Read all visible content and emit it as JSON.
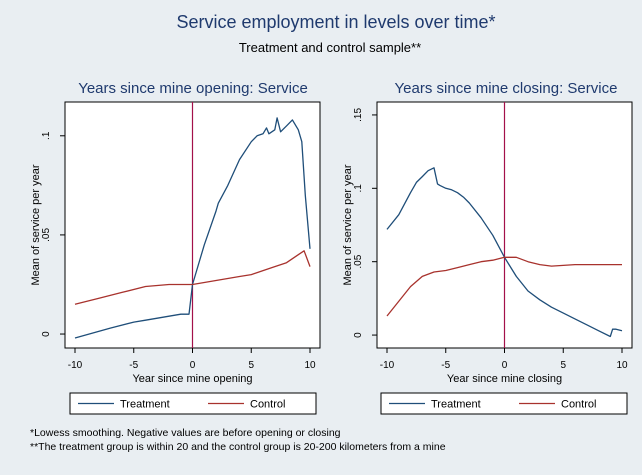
{
  "figure": {
    "title": "Service employment in levels over time*",
    "subtitle": "Treatment and control sample**",
    "footnote1": "*Lowess smoothing. Negative values are before opening or closing",
    "footnote2": "**The treatment group is within 20 and the control group is 20-200 kilometers from a mine"
  },
  "colors": {
    "background": "#e9eef2",
    "plot_bg": "#ffffff",
    "treatment": "#1f4e79",
    "control": "#a8322d",
    "event_line": "#a3114a",
    "title": "#1f3a6e"
  },
  "chart_data": [
    {
      "type": "line",
      "title": "Years since mine opening: Service",
      "xlabel": "Year since mine opening",
      "ylabel": "Mean of service per year",
      "xlim": [
        -10,
        10
      ],
      "ylim": [
        -0.002,
        0.112
      ],
      "xticks": [
        -10,
        -5,
        0,
        5,
        10
      ],
      "xtick_labels": [
        "-10",
        "-5",
        "0",
        "5",
        "10"
      ],
      "yticks": [
        0,
        0.05,
        0.1
      ],
      "ytick_labels": [
        "0",
        ".05",
        ".1"
      ],
      "event_x": 0,
      "legend": [
        "Treatment",
        "Control"
      ],
      "series": [
        {
          "name": "Treatment",
          "x": [
            -10,
            -7,
            -5,
            -4,
            -3,
            -2,
            -1,
            -0.3,
            0,
            1,
            2,
            2.2,
            3,
            4,
            5,
            5.5,
            6,
            6.3,
            6.5,
            7,
            7.2,
            7.5,
            8,
            8.5,
            9,
            9.3,
            9.6,
            10
          ],
          "values": [
            -0.002,
            0.003,
            0.006,
            0.007,
            0.008,
            0.009,
            0.01,
            0.01,
            0.025,
            0.045,
            0.062,
            0.066,
            0.075,
            0.088,
            0.097,
            0.1,
            0.101,
            0.104,
            0.101,
            0.103,
            0.109,
            0.102,
            0.105,
            0.108,
            0.103,
            0.097,
            0.07,
            0.043
          ]
        },
        {
          "name": "Control",
          "x": [
            -10,
            -8,
            -6,
            -4,
            -2,
            0,
            2,
            4,
            5,
            6,
            7,
            8,
            9,
            9.5,
            10
          ],
          "values": [
            0.015,
            0.018,
            0.021,
            0.024,
            0.025,
            0.025,
            0.027,
            0.029,
            0.03,
            0.032,
            0.034,
            0.036,
            0.04,
            0.042,
            0.034
          ]
        }
      ]
    },
    {
      "type": "line",
      "title": "Years since mine closing: Service",
      "xlabel": "Year since mine closing",
      "ylabel": "Mean of service per year",
      "xlim": [
        -10,
        10
      ],
      "ylim": [
        -0.002,
        0.152
      ],
      "xticks": [
        -10,
        -5,
        0,
        5,
        10
      ],
      "xtick_labels": [
        "-10",
        "-5",
        "0",
        "5",
        "10"
      ],
      "yticks": [
        0,
        0.05,
        0.1,
        0.15
      ],
      "ytick_labels": [
        "0",
        ".05",
        ".1",
        ".15"
      ],
      "event_x": 0,
      "legend": [
        "Treatment",
        "Control"
      ],
      "series": [
        {
          "name": "Treatment",
          "x": [
            -10,
            -9,
            -8,
            -7.5,
            -7,
            -6.5,
            -6,
            -5.7,
            -5.5,
            -5,
            -4.5,
            -4,
            -3.5,
            -3,
            -2,
            -1,
            0,
            1,
            2,
            3,
            4,
            5,
            6,
            7,
            8,
            9,
            9.2,
            9.5,
            10
          ],
          "values": [
            0.072,
            0.082,
            0.097,
            0.104,
            0.108,
            0.112,
            0.114,
            0.103,
            0.102,
            0.1,
            0.099,
            0.097,
            0.094,
            0.09,
            0.08,
            0.068,
            0.053,
            0.04,
            0.03,
            0.024,
            0.019,
            0.015,
            0.011,
            0.007,
            0.003,
            -0.001,
            0.004,
            0.004,
            0.003
          ]
        },
        {
          "name": "Control",
          "x": [
            -10,
            -8,
            -7,
            -6,
            -5,
            -4,
            -3,
            -2,
            -1,
            0,
            1,
            2,
            3,
            4,
            6,
            8,
            10
          ],
          "values": [
            0.013,
            0.033,
            0.04,
            0.043,
            0.044,
            0.046,
            0.048,
            0.05,
            0.051,
            0.053,
            0.053,
            0.05,
            0.048,
            0.047,
            0.048,
            0.048,
            0.048
          ]
        }
      ]
    }
  ]
}
